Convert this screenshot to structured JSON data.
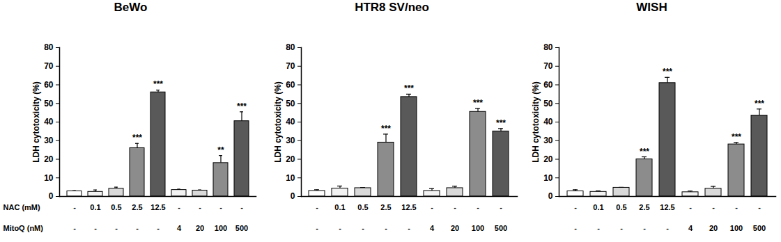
{
  "chart_data": [
    {
      "type": "bar",
      "title": "BeWo",
      "y_label": "LDH cytotoxicity (%)",
      "category_rows": [
        "NAC (mM)",
        "MitoQ (nM)"
      ],
      "categories": [
        [
          "-",
          "-"
        ],
        [
          "0.1",
          "-"
        ],
        [
          "0.5",
          "-"
        ],
        [
          "2.5",
          "-"
        ],
        [
          "12.5",
          "-"
        ],
        [
          "-",
          "4"
        ],
        [
          "-",
          "20"
        ],
        [
          "-",
          "100"
        ],
        [
          "-",
          "500"
        ]
      ],
      "values": [
        2.8,
        2.5,
        4.2,
        26,
        56,
        3.5,
        3.2,
        18,
        40.5
      ],
      "errors": [
        0.3,
        1.0,
        0.8,
        2.5,
        1.2,
        0.4,
        0.3,
        4,
        5
      ],
      "annotations": [
        null,
        null,
        null,
        "***",
        "***",
        null,
        null,
        "**",
        "***"
      ],
      "colors": [
        "#ffffff",
        "#f2f2f2",
        "#d9d9d9",
        "#8c8c8c",
        "#595959",
        "#f2f2f2",
        "#d9d9d9",
        "#8c8c8c",
        "#595959"
      ],
      "ylim": [
        0,
        80
      ],
      "yticks": [
        0,
        10,
        20,
        30,
        40,
        50,
        60,
        70,
        80
      ]
    },
    {
      "type": "bar",
      "title": "HTR8 SV/neo",
      "y_label": "LDH cytotoxicity (%)",
      "categories": [
        [
          "-",
          "-"
        ],
        [
          "0.1",
          "-"
        ],
        [
          "0.5",
          "-"
        ],
        [
          "2.5",
          "-"
        ],
        [
          "12.5",
          "-"
        ],
        [
          "-",
          "4"
        ],
        [
          "-",
          "20"
        ],
        [
          "-",
          "100"
        ],
        [
          "-",
          "500"
        ]
      ],
      "values": [
        3,
        4.3,
        4.5,
        29,
        53.5,
        3,
        4.5,
        45.5,
        35
      ],
      "errors": [
        0.6,
        1.3,
        0.3,
        4.5,
        1.5,
        1.2,
        1.0,
        1.8,
        1.5
      ],
      "annotations": [
        null,
        null,
        null,
        "***",
        "***",
        null,
        null,
        "***",
        "***"
      ],
      "colors": [
        "#ffffff",
        "#f2f2f2",
        "#d9d9d9",
        "#8c8c8c",
        "#595959",
        "#f2f2f2",
        "#d9d9d9",
        "#8c8c8c",
        "#595959"
      ],
      "ylim": [
        0,
        80
      ],
      "yticks": [
        0,
        10,
        20,
        30,
        40,
        50,
        60,
        70,
        80
      ]
    },
    {
      "type": "bar",
      "title": "WISH",
      "y_label": "LDH cytotoxicity (%)",
      "categories": [
        [
          "-",
          "-"
        ],
        [
          "0.1",
          "-"
        ],
        [
          "0.5",
          "-"
        ],
        [
          "2.5",
          "-"
        ],
        [
          "12.5",
          "-"
        ],
        [
          "-",
          "4"
        ],
        [
          "-",
          "20"
        ],
        [
          "-",
          "100"
        ],
        [
          "-",
          "500"
        ]
      ],
      "values": [
        2.8,
        2.5,
        4.7,
        20,
        61,
        2.3,
        4.2,
        28,
        43.5
      ],
      "errors": [
        0.8,
        0.5,
        0.2,
        1.3,
        3,
        0.6,
        1.2,
        1,
        3.5
      ],
      "annotations": [
        null,
        null,
        null,
        "***",
        "***",
        null,
        null,
        "***",
        "***"
      ],
      "colors": [
        "#ffffff",
        "#f2f2f2",
        "#d9d9d9",
        "#8c8c8c",
        "#595959",
        "#f2f2f2",
        "#d9d9d9",
        "#8c8c8c",
        "#595959"
      ],
      "ylim": [
        0,
        80
      ],
      "yticks": [
        0,
        10,
        20,
        30,
        40,
        50,
        60,
        70,
        80
      ]
    }
  ]
}
